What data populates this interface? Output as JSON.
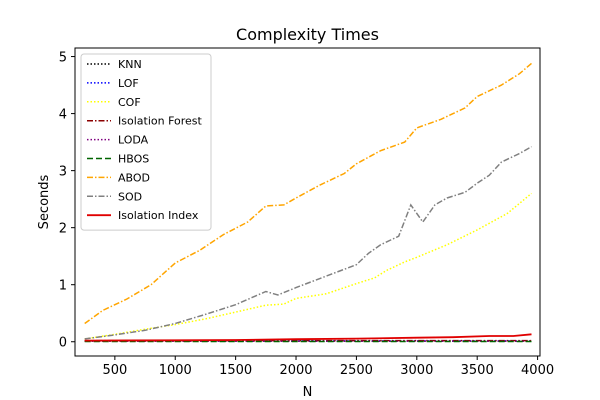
{
  "chart_data": {
    "type": "line",
    "title": "Complexity Times",
    "xlabel": "N",
    "ylabel": "Seconds",
    "xlim": [
      170,
      4020
    ],
    "ylim": [
      -0.25,
      5.15
    ],
    "xticks": [
      500,
      1000,
      1500,
      2000,
      2500,
      3000,
      3500,
      4000
    ],
    "yticks": [
      0,
      1,
      2,
      3,
      4,
      5
    ],
    "legend_position": "top-left",
    "series": [
      {
        "name": "KNN",
        "color": "#000000",
        "style": "dotted",
        "x": [
          250,
          1000,
          2000,
          3000,
          3950
        ],
        "y": [
          0.01,
          0.01,
          0.01,
          0.01,
          0.01
        ]
      },
      {
        "name": "LOF",
        "color": "#0000ff",
        "style": "dotted",
        "x": [
          250,
          1000,
          2000,
          3000,
          3950
        ],
        "y": [
          0.015,
          0.015,
          0.015,
          0.015,
          0.015
        ]
      },
      {
        "name": "COF",
        "color": "#ffff00",
        "style": "dotted",
        "x": [
          250,
          500,
          750,
          1000,
          1250,
          1500,
          1750,
          1900,
          2000,
          2250,
          2500,
          2650,
          2750,
          2900,
          3000,
          3250,
          3500,
          3750,
          3950
        ],
        "y": [
          0.05,
          0.13,
          0.22,
          0.3,
          0.4,
          0.52,
          0.64,
          0.66,
          0.76,
          0.84,
          1.02,
          1.12,
          1.25,
          1.4,
          1.48,
          1.7,
          1.96,
          2.25,
          2.6
        ]
      },
      {
        "name": "Isolation Forest",
        "color": "#8b0000",
        "style": "dashdot",
        "x": [
          250,
          1000,
          2000,
          3000,
          3950
        ],
        "y": [
          0.02,
          0.02,
          0.02,
          0.02,
          0.02
        ]
      },
      {
        "name": "LODA",
        "color": "#800080",
        "style": "dotted",
        "x": [
          250,
          1000,
          2000,
          3000,
          3950
        ],
        "y": [
          0.008,
          0.008,
          0.008,
          0.008,
          0.008
        ]
      },
      {
        "name": "HBOS",
        "color": "#006400",
        "style": "dashed",
        "x": [
          250,
          1000,
          2000,
          3000,
          3950
        ],
        "y": [
          0.004,
          0.004,
          0.004,
          0.004,
          0.004
        ]
      },
      {
        "name": "ABOD",
        "color": "#ffa500",
        "style": "dashdot",
        "x": [
          250,
          400,
          600,
          800,
          1000,
          1200,
          1400,
          1600,
          1750,
          1900,
          2000,
          2200,
          2400,
          2500,
          2700,
          2900,
          3000,
          3200,
          3400,
          3500,
          3700,
          3850,
          3950
        ],
        "y": [
          0.32,
          0.55,
          0.75,
          1.0,
          1.38,
          1.6,
          1.88,
          2.1,
          2.38,
          2.4,
          2.52,
          2.75,
          2.95,
          3.12,
          3.35,
          3.5,
          3.75,
          3.9,
          4.1,
          4.3,
          4.5,
          4.7,
          4.88
        ]
      },
      {
        "name": "SOD",
        "color": "#808080",
        "style": "dashdot",
        "x": [
          250,
          500,
          750,
          1000,
          1250,
          1500,
          1750,
          1850,
          2000,
          2250,
          2500,
          2600,
          2700,
          2850,
          2950,
          3050,
          3150,
          3250,
          3400,
          3500,
          3600,
          3700,
          3850,
          3950
        ],
        "y": [
          0.05,
          0.12,
          0.2,
          0.32,
          0.48,
          0.65,
          0.88,
          0.82,
          0.95,
          1.15,
          1.35,
          1.55,
          1.7,
          1.85,
          2.4,
          2.1,
          2.4,
          2.52,
          2.62,
          2.78,
          2.92,
          3.15,
          3.3,
          3.42
        ]
      },
      {
        "name": "Isolation Index",
        "color": "#e00000",
        "style": "solid",
        "x": [
          250,
          1000,
          1500,
          2000,
          2500,
          3000,
          3300,
          3600,
          3800,
          3950
        ],
        "y": [
          0.02,
          0.025,
          0.03,
          0.045,
          0.055,
          0.07,
          0.08,
          0.1,
          0.1,
          0.13
        ]
      }
    ]
  }
}
